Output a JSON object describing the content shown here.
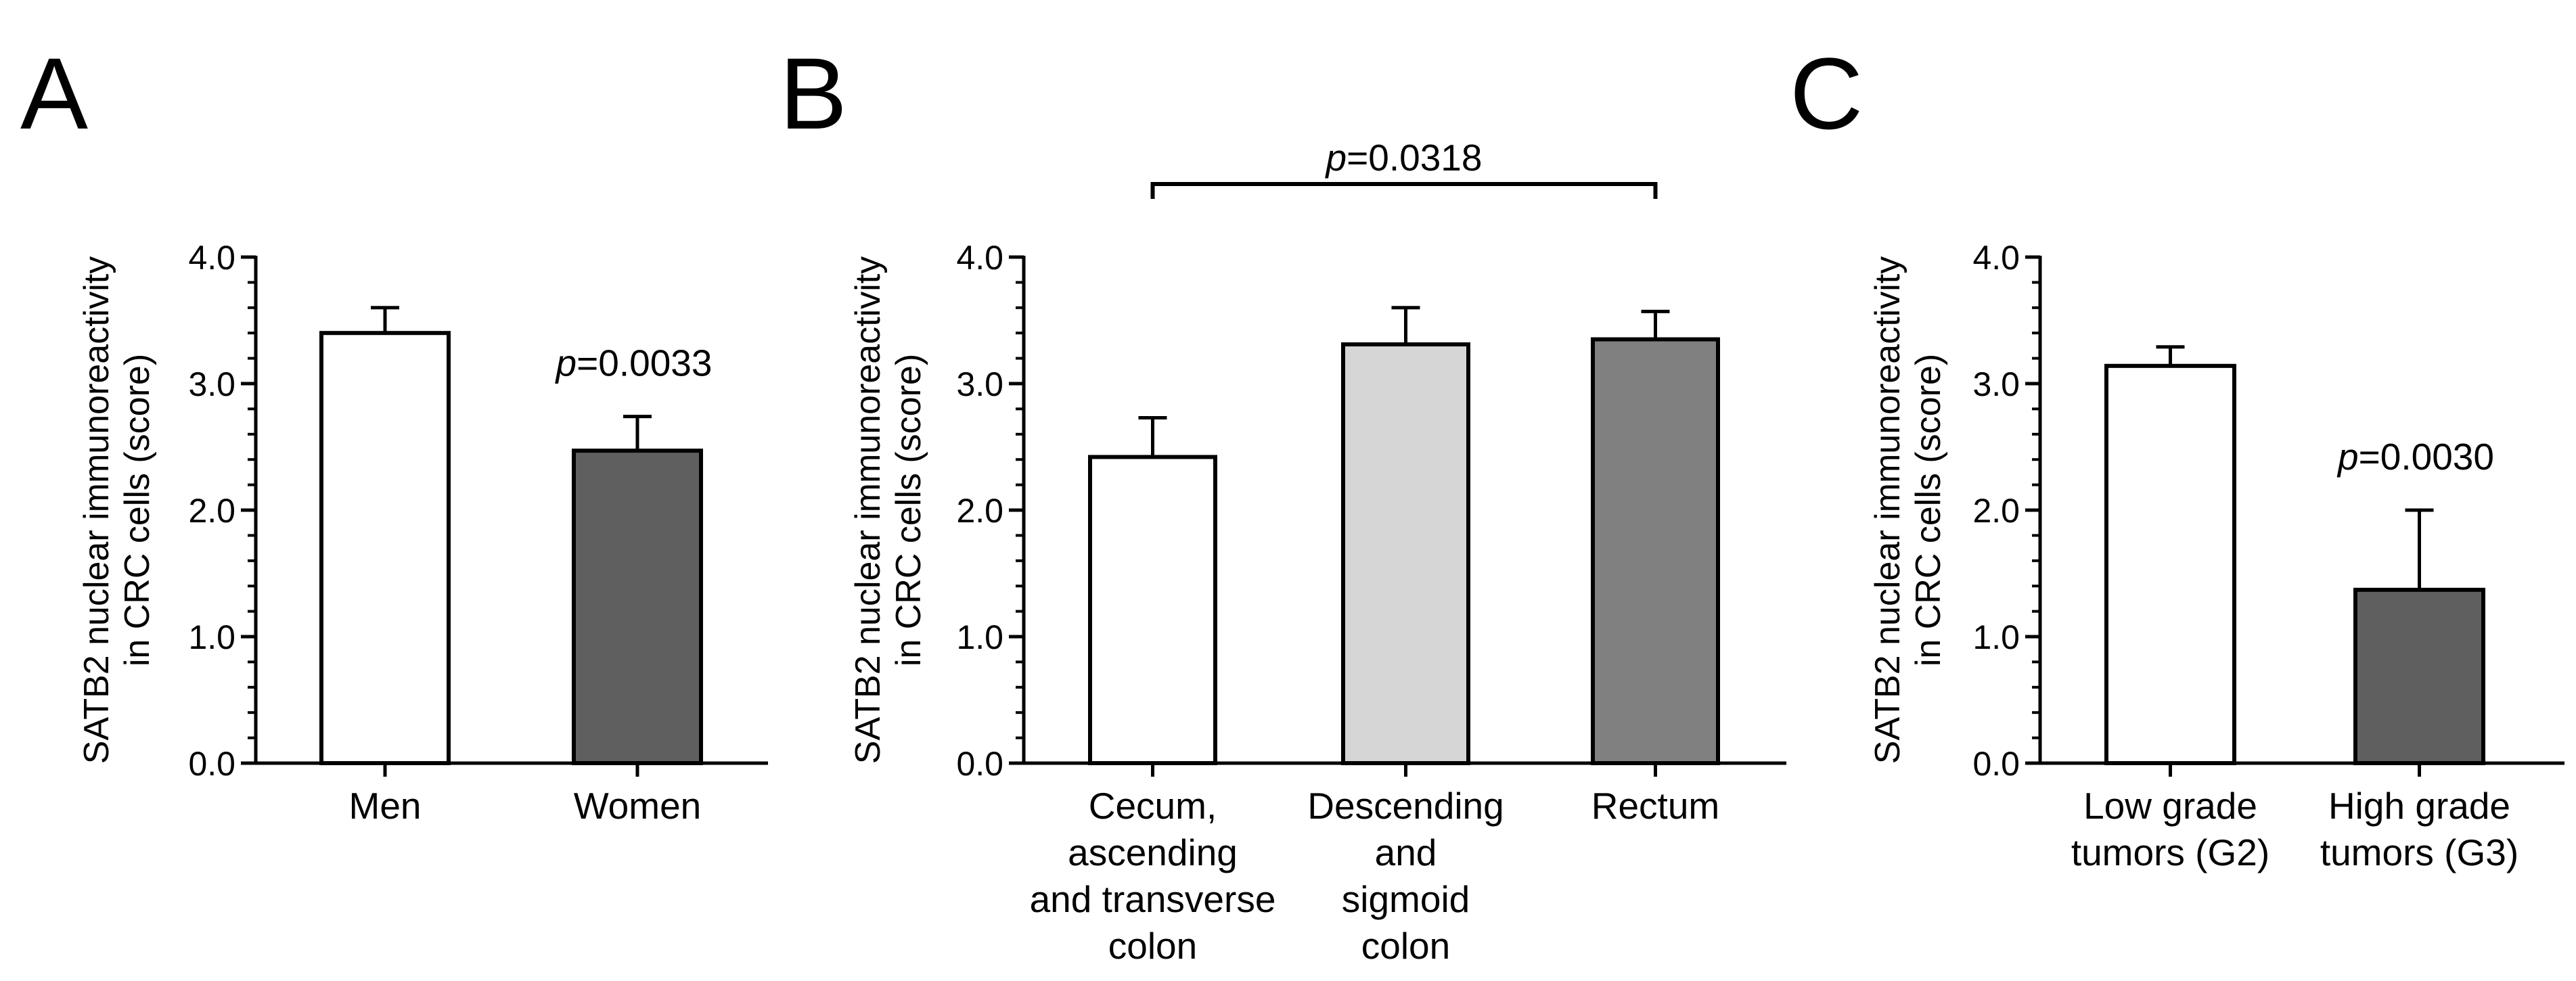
{
  "chart_data": [
    {
      "type": "bar",
      "panel": "A",
      "title": "",
      "xlabel": "",
      "ylabel_lines": [
        "SATB2 nuclear immunoreactivity",
        "in CRC cells (score)"
      ],
      "ylim": [
        0,
        4
      ],
      "yticks": [
        "0.0",
        "1.0",
        "2.0",
        "3.0",
        "4.0"
      ],
      "categories": [
        [
          "Men"
        ],
        [
          "Women"
        ]
      ],
      "values": [
        3.4,
        2.47
      ],
      "errors": [
        0.2,
        0.27
      ],
      "colors": [
        "#ffffff",
        "#5f5f5f"
      ],
      "annotations": [
        {
          "p": "p",
          "text": "=0.0033",
          "over_bar": 1
        }
      ]
    },
    {
      "type": "bar",
      "panel": "B",
      "title": "",
      "xlabel": "",
      "ylabel_lines": [
        "SATB2 nuclear immunoreactivity",
        "in CRC cells (score)"
      ],
      "ylim": [
        0,
        4
      ],
      "yticks": [
        "0.0",
        "1.0",
        "2.0",
        "3.0",
        "4.0"
      ],
      "categories": [
        [
          "Cecum,",
          "ascending",
          "and transverse",
          "colon"
        ],
        [
          "Descending",
          "and",
          "sigmoid",
          "colon"
        ],
        [
          "Rectum"
        ]
      ],
      "values": [
        2.42,
        3.31,
        3.35
      ],
      "errors": [
        0.31,
        0.29,
        0.22
      ],
      "colors": [
        "#ffffff",
        "#d6d6d6",
        "#808080"
      ],
      "annotations": [
        {
          "p": "p",
          "text": "=0.0318",
          "bracket": [
            0,
            2
          ]
        }
      ]
    },
    {
      "type": "bar",
      "panel": "C",
      "title": "",
      "xlabel": "",
      "ylabel_lines": [
        "SATB2 nuclear immunoreactivity",
        "in CRC cells (score)"
      ],
      "ylim": [
        0,
        4
      ],
      "yticks": [
        "0.0",
        "1.0",
        "2.0",
        "3.0",
        "4.0"
      ],
      "categories": [
        [
          "Low grade",
          "tumors (G2)"
        ],
        [
          "High grade",
          "tumors (G3)"
        ]
      ],
      "values": [
        3.14,
        1.37
      ],
      "errors": [
        0.15,
        0.63
      ],
      "colors": [
        "#ffffff",
        "#5f5f5f"
      ],
      "annotations": [
        {
          "p": "p",
          "text": "=0.0030",
          "over_bar": 1
        }
      ]
    }
  ]
}
